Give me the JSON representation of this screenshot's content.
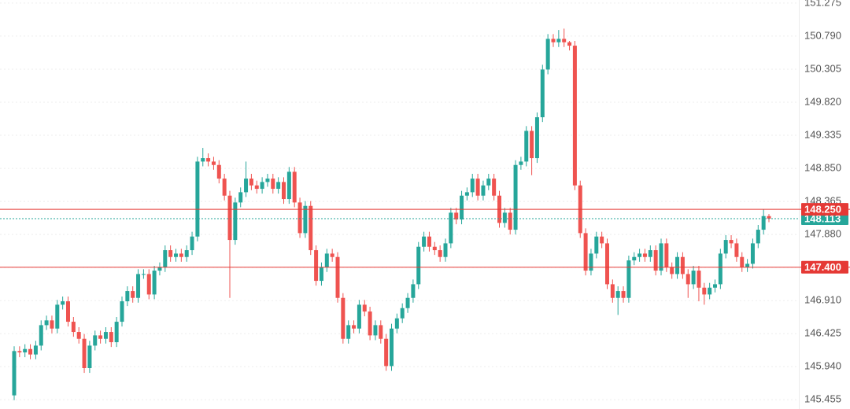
{
  "chart_data": {
    "type": "candlestick",
    "ylim": [
      145.32,
      151.32
    ],
    "yticks": [
      {
        "value": 145.455,
        "label": "145.455"
      },
      {
        "value": 145.94,
        "label": "145.940"
      },
      {
        "value": 146.425,
        "label": "146.425"
      },
      {
        "value": 146.91,
        "label": "146.910"
      },
      {
        "value": 147.395,
        "label": "147.395"
      },
      {
        "value": 147.88,
        "label": "147.880"
      },
      {
        "value": 148.365,
        "label": "148.365"
      },
      {
        "value": 148.85,
        "label": "148.850"
      },
      {
        "value": 149.335,
        "label": "149.335"
      },
      {
        "value": 149.82,
        "label": "149.820"
      },
      {
        "value": 150.305,
        "label": "150.305"
      },
      {
        "value": 150.79,
        "label": "150.790"
      },
      {
        "value": 151.275,
        "label": "151.275"
      }
    ],
    "grid": true,
    "up_color": "#26a69a",
    "down_color": "#ef5350",
    "levels": [
      {
        "value": 148.25,
        "label": "148.250",
        "color": "#e53935"
      },
      {
        "value": 147.4,
        "label": "147.400",
        "color": "#e53935"
      }
    ],
    "current_price": 148.113,
    "current_color": "#26a69a",
    "open": [
      145.52,
      146.17,
      146.15,
      146.2,
      146.12,
      146.25,
      146.55,
      146.62,
      146.5,
      146.85,
      146.9,
      146.6,
      146.45,
      146.35,
      145.92,
      146.25,
      146.4,
      146.35,
      146.45,
      146.3,
      146.6,
      146.9,
      147.05,
      146.95,
      147.3,
      147.3,
      147.0,
      147.35,
      147.4,
      147.65,
      147.55,
      147.6,
      147.55,
      147.65,
      147.85,
      148.95,
      149.0,
      148.95,
      148.9,
      148.7,
      148.45,
      147.8,
      148.35,
      148.5,
      148.7,
      148.6,
      148.55,
      148.65,
      148.7,
      148.55,
      148.65,
      148.4,
      148.8,
      148.35,
      147.9,
      148.3,
      147.65,
      147.2,
      147.4,
      147.6,
      147.55,
      146.95,
      146.35,
      146.55,
      146.5,
      146.85,
      146.75,
      146.4,
      146.55,
      146.35,
      145.95,
      146.5,
      146.65,
      146.8,
      146.95,
      147.15,
      147.7,
      147.85,
      147.7,
      147.65,
      147.55,
      147.75,
      148.2,
      148.1,
      148.45,
      148.5,
      148.7,
      148.45,
      148.6,
      148.7,
      148.45,
      148.05,
      148.2,
      147.95,
      148.9,
      148.95,
      149.4,
      149.0,
      149.6,
      150.3,
      150.75,
      150.7,
      150.75,
      150.7,
      150.65,
      148.6,
      147.9,
      147.35,
      147.6,
      147.85,
      147.75,
      147.15,
      146.95,
      147.05,
      146.95,
      147.5,
      147.55,
      147.6,
      147.55,
      147.65,
      147.35,
      147.75,
      147.4,
      147.3,
      147.55,
      147.3,
      147.15,
      147.35,
      147.1,
      147.0,
      147.1,
      147.15,
      147.6,
      147.8,
      147.75,
      147.55,
      147.4,
      147.45,
      147.75,
      147.95,
      148.15
    ],
    "high": [
      146.24,
      146.24,
      146.27,
      146.27,
      146.32,
      146.62,
      146.69,
      146.69,
      146.92,
      146.97,
      146.97,
      146.67,
      146.52,
      146.42,
      146.32,
      146.47,
      146.47,
      146.52,
      146.52,
      146.67,
      146.97,
      147.12,
      147.12,
      147.37,
      147.37,
      147.37,
      147.42,
      147.47,
      147.72,
      147.72,
      147.67,
      147.67,
      147.72,
      147.92,
      149.02,
      149.15,
      149.07,
      149.02,
      148.97,
      148.77,
      148.52,
      148.42,
      148.57,
      148.95,
      148.77,
      148.67,
      148.72,
      148.77,
      148.77,
      148.72,
      148.72,
      148.87,
      148.87,
      148.42,
      148.37,
      148.37,
      147.72,
      147.47,
      147.67,
      147.67,
      147.62,
      147.02,
      146.62,
      146.62,
      146.92,
      146.92,
      146.82,
      146.62,
      146.62,
      146.42,
      146.57,
      146.72,
      146.87,
      147.02,
      147.22,
      147.77,
      147.92,
      147.92,
      147.77,
      147.72,
      147.82,
      148.27,
      148.27,
      148.52,
      148.57,
      148.77,
      148.77,
      148.67,
      148.77,
      148.77,
      148.52,
      148.27,
      148.27,
      148.97,
      149.02,
      149.47,
      149.47,
      149.67,
      150.37,
      150.82,
      150.82,
      150.88,
      150.9,
      150.72,
      150.72,
      148.67,
      147.97,
      147.67,
      147.92,
      147.92,
      147.82,
      147.22,
      147.12,
      147.12,
      147.57,
      147.62,
      147.67,
      147.67,
      147.72,
      147.72,
      147.82,
      147.82,
      147.47,
      147.62,
      147.62,
      147.37,
      147.42,
      147.42,
      147.17,
      147.17,
      147.22,
      147.67,
      147.87,
      147.87,
      147.82,
      147.62,
      147.52,
      147.82,
      148.02,
      148.25,
      148.18
    ],
    "low": [
      145.45,
      146.08,
      146.08,
      146.05,
      146.05,
      146.18,
      146.48,
      146.43,
      146.43,
      146.78,
      146.53,
      146.38,
      146.28,
      145.85,
      145.85,
      146.18,
      146.28,
      146.28,
      146.23,
      146.23,
      146.53,
      146.83,
      146.88,
      146.88,
      147.23,
      146.93,
      146.93,
      147.28,
      147.33,
      147.48,
      147.48,
      147.48,
      147.48,
      147.58,
      147.78,
      148.88,
      148.88,
      148.83,
      148.63,
      148.38,
      146.95,
      147.73,
      148.28,
      148.43,
      148.53,
      148.48,
      148.48,
      148.58,
      148.48,
      148.48,
      148.33,
      148.33,
      148.28,
      147.83,
      147.83,
      147.58,
      147.13,
      147.13,
      147.33,
      147.48,
      146.88,
      146.28,
      146.28,
      146.43,
      146.43,
      146.68,
      146.33,
      146.33,
      146.28,
      145.88,
      145.88,
      146.43,
      146.58,
      146.73,
      146.88,
      147.08,
      147.63,
      147.63,
      147.58,
      147.48,
      147.48,
      147.68,
      148.03,
      148.03,
      148.38,
      148.43,
      148.38,
      148.38,
      148.53,
      148.38,
      147.98,
      147.98,
      147.88,
      147.88,
      148.83,
      148.88,
      148.75,
      148.93,
      149.53,
      150.23,
      150.63,
      150.63,
      150.63,
      150.58,
      148.53,
      147.83,
      147.28,
      147.28,
      147.53,
      147.68,
      147.08,
      146.88,
      146.7,
      146.88,
      146.88,
      147.43,
      147.48,
      147.48,
      147.48,
      147.28,
      147.28,
      147.33,
      147.23,
      147.23,
      147.23,
      146.95,
      147.08,
      146.9,
      146.85,
      146.93,
      147.03,
      147.08,
      147.53,
      147.68,
      147.48,
      147.33,
      147.33,
      147.38,
      147.68,
      147.88,
      148.06
    ],
    "close": [
      146.17,
      146.15,
      146.2,
      146.12,
      146.25,
      146.55,
      146.62,
      146.5,
      146.85,
      146.9,
      146.6,
      146.45,
      146.35,
      145.92,
      146.25,
      146.4,
      146.35,
      146.45,
      146.3,
      146.6,
      146.9,
      147.05,
      146.95,
      147.3,
      147.3,
      147.0,
      147.35,
      147.4,
      147.65,
      147.55,
      147.6,
      147.55,
      147.65,
      147.85,
      148.95,
      149.0,
      148.95,
      148.9,
      148.7,
      148.45,
      147.8,
      148.35,
      148.5,
      148.7,
      148.6,
      148.55,
      148.65,
      148.7,
      148.55,
      148.65,
      148.4,
      148.8,
      148.35,
      147.9,
      148.3,
      147.65,
      147.2,
      147.4,
      147.6,
      147.55,
      146.95,
      146.35,
      146.55,
      146.5,
      146.85,
      146.75,
      146.4,
      146.55,
      146.35,
      145.95,
      146.5,
      146.65,
      146.8,
      146.95,
      147.15,
      147.7,
      147.85,
      147.7,
      147.65,
      147.55,
      147.75,
      148.2,
      148.1,
      148.45,
      148.5,
      148.7,
      148.45,
      148.6,
      148.7,
      148.45,
      148.05,
      148.2,
      147.95,
      148.9,
      148.95,
      149.4,
      149.0,
      149.6,
      150.3,
      150.75,
      150.7,
      150.75,
      150.7,
      150.65,
      148.6,
      147.9,
      147.35,
      147.6,
      147.85,
      147.75,
      147.15,
      146.95,
      147.05,
      146.95,
      147.5,
      147.55,
      147.6,
      147.55,
      147.65,
      147.35,
      147.75,
      147.4,
      147.3,
      147.55,
      147.3,
      147.15,
      147.35,
      147.1,
      147.0,
      147.1,
      147.15,
      147.6,
      147.8,
      147.75,
      147.55,
      147.4,
      147.45,
      147.75,
      147.95,
      148.15,
      148.113
    ]
  }
}
